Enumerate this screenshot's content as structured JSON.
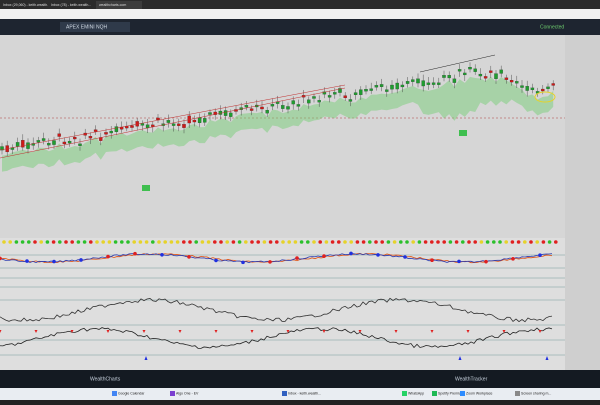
{
  "browser": {
    "tabs": [
      "Inbox (29,060) - keith.wealth...",
      "Inbox (78) - keith.wealth...",
      "wealthcharts.com"
    ]
  },
  "app": {
    "symbol_tab": "APEX EMINI NQH",
    "status": "Connected",
    "bottom_tabs": [
      "WealthCharts",
      "WealthTracker"
    ]
  },
  "taskbar": {
    "items": [
      "Google Calendar",
      "Algo One - EV",
      "Inbox - keith.wealth...",
      "WhatsApp",
      "Spotify Premium",
      "Zoom Workplace",
      "Screen sharing m..."
    ]
  }
}
